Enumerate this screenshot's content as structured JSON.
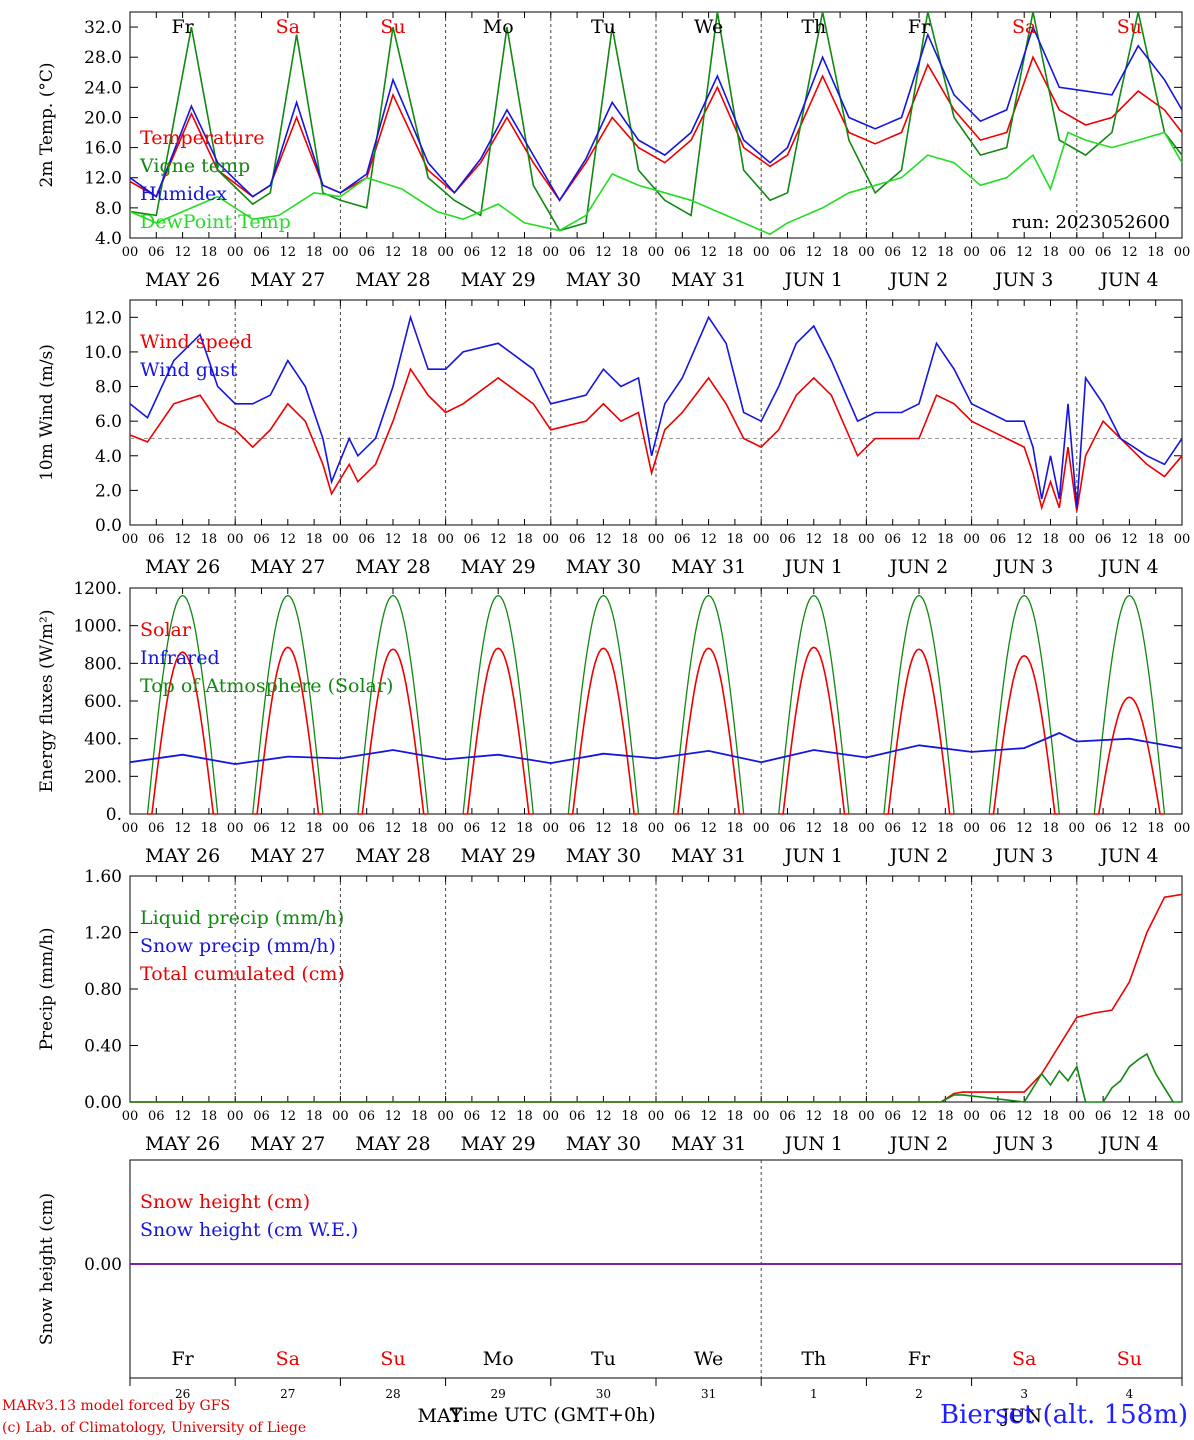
{
  "credits": {
    "line1": "MARv3.13 model forced by GFS",
    "line2": "(c) Lab. of Climatology, University of Liege"
  },
  "station": "Bierset (alt. 158m)",
  "xaxis_title": "Time UTC (GMT+0h)",
  "colors": {
    "red": "#ee0000",
    "green": "#118811",
    "blue": "#1515e0",
    "lightgreen": "#22dd22",
    "purple": "#7722aa",
    "weekend": "#ee0000",
    "weekday": "#000000"
  },
  "hour_ticks": [
    "00",
    "06",
    "12",
    "18"
  ],
  "day_labels": [
    "MAY 26",
    "MAY 27",
    "MAY 28",
    "MAY 29",
    "MAY 30",
    "MAY 31",
    "JUN  1",
    "JUN  2",
    "JUN  3",
    "JUN  4"
  ],
  "weekdays": [
    {
      "label": "Fr",
      "weekend": false
    },
    {
      "label": "Sa",
      "weekend": true
    },
    {
      "label": "Su",
      "weekend": true
    },
    {
      "label": "Mo",
      "weekend": false
    },
    {
      "label": "Tu",
      "weekend": false
    },
    {
      "label": "We",
      "weekend": false
    },
    {
      "label": "Th",
      "weekend": false
    },
    {
      "label": "Fr",
      "weekend": false
    },
    {
      "label": "Sa",
      "weekend": true
    },
    {
      "label": "Su",
      "weekend": true
    }
  ],
  "bottom_day_numbers": [
    "26",
    "27",
    "28",
    "29",
    "30",
    "31",
    "1",
    "2",
    "3",
    "4"
  ],
  "bottom_month_labels": {
    "may": "MAY",
    "jun": "JUN"
  },
  "chart_data": [
    {
      "type": "line",
      "ylabel": "2m Temp. (°C)",
      "ylim": [
        4,
        34
      ],
      "yticks": [
        "4.0",
        "8.0",
        "12.0",
        "16.0",
        "20.0",
        "24.0",
        "28.0",
        "32.0"
      ],
      "annotation": "run: 2023052600",
      "legend": [
        "Temperature",
        "Vigne temp",
        "Humidex",
        "DewPoint Temp"
      ],
      "x_unit": "hours since MAY 26 00 UTC",
      "series": [
        {
          "name": "Temperature",
          "color": "red",
          "x": [
            0,
            6,
            14,
            20,
            28,
            32,
            38,
            44,
            48,
            54,
            60,
            68,
            74,
            80,
            86,
            92,
            98,
            104,
            110,
            116,
            122,
            128,
            134,
            140,
            146,
            150,
            158,
            164,
            170,
            176,
            182,
            188,
            194,
            200,
            206,
            212,
            218,
            224,
            230,
            236,
            240
          ],
          "y": [
            11.5,
            9.5,
            20.5,
            13,
            9.5,
            11,
            20,
            11,
            10,
            12,
            23,
            13,
            10,
            14,
            20,
            14,
            9,
            14,
            20,
            16,
            14,
            17,
            24,
            16,
            13.5,
            15,
            25.5,
            18,
            16.5,
            18,
            27,
            21,
            17,
            18,
            28,
            21,
            19,
            20,
            23.5,
            21,
            18
          ]
        },
        {
          "name": "Vigne temp",
          "color": "green",
          "x": [
            0,
            6,
            14,
            20,
            28,
            32,
            38,
            44,
            48,
            54,
            60,
            68,
            74,
            80,
            86,
            92,
            98,
            104,
            110,
            116,
            122,
            128,
            134,
            140,
            146,
            150,
            158,
            164,
            170,
            176,
            182,
            188,
            194,
            200,
            206,
            212,
            218,
            224,
            230,
            236,
            240
          ],
          "y": [
            7.5,
            7,
            32,
            13,
            8.5,
            10,
            31,
            10,
            9,
            8,
            32,
            12,
            9,
            7,
            32,
            11,
            5,
            6,
            32,
            13,
            9,
            7,
            34,
            13,
            9,
            10,
            34,
            17,
            10,
            13,
            34,
            20,
            15,
            16,
            34,
            17,
            15,
            18,
            34,
            18,
            15
          ]
        },
        {
          "name": "Humidex",
          "color": "blue",
          "x": [
            0,
            6,
            14,
            20,
            28,
            32,
            38,
            44,
            48,
            54,
            60,
            68,
            74,
            80,
            86,
            92,
            98,
            104,
            110,
            116,
            122,
            128,
            134,
            140,
            146,
            150,
            158,
            164,
            170,
            176,
            182,
            188,
            194,
            200,
            206,
            212,
            218,
            224,
            230,
            236,
            240
          ],
          "y": [
            12,
            9.5,
            21.5,
            14,
            9.5,
            11,
            22,
            11,
            10,
            12.5,
            25,
            14,
            10,
            14.5,
            21,
            15,
            9,
            14.5,
            22,
            17,
            15,
            18,
            25.5,
            17,
            14,
            16,
            28,
            20,
            18.5,
            20,
            31,
            23,
            19.5,
            21,
            32,
            24,
            23.5,
            23,
            29.5,
            25,
            21
          ]
        },
        {
          "name": "DewPoint Temp",
          "color": "lightgreen",
          "x": [
            0,
            6,
            12,
            20,
            28,
            34,
            42,
            48,
            54,
            62,
            70,
            76,
            84,
            90,
            98,
            104,
            110,
            116,
            122,
            128,
            134,
            140,
            146,
            150,
            158,
            164,
            170,
            176,
            182,
            188,
            194,
            200,
            206,
            210,
            214,
            218,
            224,
            230,
            236,
            240
          ],
          "y": [
            7.5,
            6,
            7.5,
            9.5,
            6.5,
            7,
            10,
            9.5,
            12,
            10.5,
            7.5,
            6.5,
            8.5,
            6,
            5,
            7,
            12.5,
            11,
            10,
            9,
            7.5,
            6,
            4.5,
            6,
            8,
            10,
            11,
            12,
            15,
            14,
            11,
            12,
            15,
            10.5,
            18,
            17,
            16,
            17,
            18,
            14
          ]
        }
      ]
    },
    {
      "type": "line",
      "ylabel": "10m Wind (m/s)",
      "ylim": [
        0,
        13
      ],
      "yticks": [
        "0.0",
        "2.0",
        "4.0",
        "6.0",
        "8.0",
        "10.0",
        "12.0"
      ],
      "reference_line": 5,
      "legend": [
        "Wind speed",
        "Wind gust"
      ],
      "x_unit": "hours since MAY 26 00 UTC",
      "series": [
        {
          "name": "Wind speed",
          "color": "red",
          "x": [
            0,
            4,
            10,
            16,
            20,
            24,
            28,
            32,
            36,
            40,
            44,
            46,
            50,
            52,
            56,
            60,
            64,
            68,
            72,
            76,
            84,
            92,
            96,
            104,
            108,
            112,
            116,
            119,
            122,
            126,
            132,
            136,
            140,
            144,
            148,
            152,
            156,
            160,
            166,
            170,
            176,
            180,
            184,
            188,
            192,
            196,
            200,
            204,
            206,
            208,
            210,
            212,
            214,
            216,
            218,
            222,
            226,
            232,
            236,
            240
          ],
          "y": [
            5.2,
            4.8,
            7,
            7.5,
            6,
            5.5,
            4.5,
            5.5,
            7,
            6,
            3.5,
            1.8,
            3.5,
            2.5,
            3.5,
            6,
            9,
            7.5,
            6.5,
            7,
            8.5,
            7,
            5.5,
            6,
            7,
            6,
            6.5,
            3,
            5.5,
            6.5,
            8.5,
            7,
            5,
            4.5,
            5.5,
            7.5,
            8.5,
            7.5,
            4,
            5,
            5,
            5,
            7.5,
            7,
            6,
            5.5,
            5,
            4.5,
            3,
            1,
            2.5,
            1,
            4.5,
            0.8,
            4,
            6,
            5,
            3.5,
            2.8,
            4
          ]
        },
        {
          "name": "Wind gust",
          "color": "blue",
          "x": [
            0,
            4,
            10,
            16,
            20,
            24,
            28,
            32,
            36,
            40,
            44,
            46,
            50,
            52,
            56,
            60,
            64,
            68,
            72,
            76,
            84,
            92,
            96,
            104,
            108,
            112,
            116,
            119,
            122,
            126,
            132,
            136,
            140,
            144,
            148,
            152,
            156,
            160,
            166,
            170,
            176,
            180,
            184,
            188,
            192,
            196,
            200,
            204,
            206,
            208,
            210,
            212,
            214,
            216,
            218,
            222,
            226,
            232,
            236,
            240
          ],
          "y": [
            7,
            6.2,
            9.5,
            11,
            8,
            7,
            7,
            7.5,
            9.5,
            8,
            5,
            2.5,
            5,
            4,
            5,
            8,
            12,
            9,
            9,
            10,
            10.5,
            9,
            7,
            7.5,
            9,
            8,
            8.5,
            4,
            7,
            8.5,
            12,
            10.5,
            6.5,
            6,
            8,
            10.5,
            11.5,
            9.5,
            6,
            6.5,
            6.5,
            7,
            10.5,
            9,
            7,
            6.5,
            6,
            6,
            4.5,
            1.5,
            4,
            1.5,
            7,
            1,
            8.5,
            7,
            5,
            4,
            3.5,
            5
          ]
        }
      ]
    },
    {
      "type": "line",
      "ylabel": "Energy fluxes (W/m²)",
      "ylim": [
        0,
        1200
      ],
      "yticks": [
        "0.",
        "200.",
        "400.",
        "600.",
        "800.",
        "1000.",
        "1200."
      ],
      "legend": [
        "Solar",
        "Infrared",
        "Top of Atmosphere (Solar)"
      ],
      "diurnal_peaks": {
        "toa_peak": 1160,
        "solar_peaks": [
          860,
          885,
          875,
          880,
          880,
          880,
          885,
          875,
          840,
          620
        ],
        "sunrise_hour": 4,
        "sunset_hour": 20
      },
      "infrared": {
        "color": "blue",
        "x": [
          0,
          12,
          24,
          36,
          48,
          60,
          72,
          84,
          96,
          108,
          120,
          132,
          144,
          156,
          168,
          180,
          192,
          204,
          212,
          216,
          228,
          240
        ],
        "y": [
          275,
          315,
          265,
          305,
          295,
          340,
          290,
          315,
          270,
          320,
          295,
          335,
          275,
          340,
          300,
          365,
          330,
          350,
          430,
          385,
          400,
          350
        ]
      },
      "series_names": [
        "Solar",
        "Infrared",
        "Top of Atmosphere (Solar)"
      ]
    },
    {
      "type": "line",
      "ylabel": "Precip (mm/h)",
      "ylim": [
        0,
        1.6
      ],
      "yticks": [
        "0.00",
        "0.40",
        "0.80",
        "1.20",
        "1.60"
      ],
      "legend": [
        "Liquid precip (mm/h)",
        "Snow precip (mm/h)",
        "Total cumulated (cm)"
      ],
      "series": [
        {
          "name": "Total cumulated (cm)",
          "color": "red",
          "x": [
            0,
            185,
            188,
            190,
            204,
            208,
            216,
            220,
            224,
            228,
            232,
            236,
            240
          ],
          "y": [
            0,
            0,
            0.06,
            0.07,
            0.07,
            0.2,
            0.6,
            0.63,
            0.65,
            0.85,
            1.2,
            1.45,
            1.47
          ]
        },
        {
          "name": "Liquid precip (mm/h)",
          "color": "green",
          "x": [
            0,
            185,
            188,
            190,
            204,
            206,
            208,
            210,
            212,
            214,
            216,
            218,
            220,
            222,
            224,
            226,
            228,
            230,
            232,
            234,
            236,
            238,
            240
          ],
          "y": [
            0,
            0,
            0.05,
            0.05,
            0,
            0.1,
            0.2,
            0.12,
            0.22,
            0.15,
            0.25,
            0,
            0,
            0,
            0.1,
            0.15,
            0.25,
            0.3,
            0.34,
            0.2,
            0.1,
            0,
            0
          ]
        }
      ]
    },
    {
      "type": "line",
      "ylabel": "Snow height (cm)",
      "yticks": [
        "0.00"
      ],
      "legend": [
        "Snow height (cm)",
        "Snow height (cm W.E.)"
      ],
      "series": [
        {
          "name": "Snow height (cm)",
          "color": "red",
          "x": [
            0,
            240
          ],
          "y": [
            0,
            0
          ]
        },
        {
          "name": "Snow height (cm W.E.)",
          "color": "blue",
          "x": [
            0,
            240
          ],
          "y": [
            0,
            0
          ]
        }
      ]
    }
  ]
}
